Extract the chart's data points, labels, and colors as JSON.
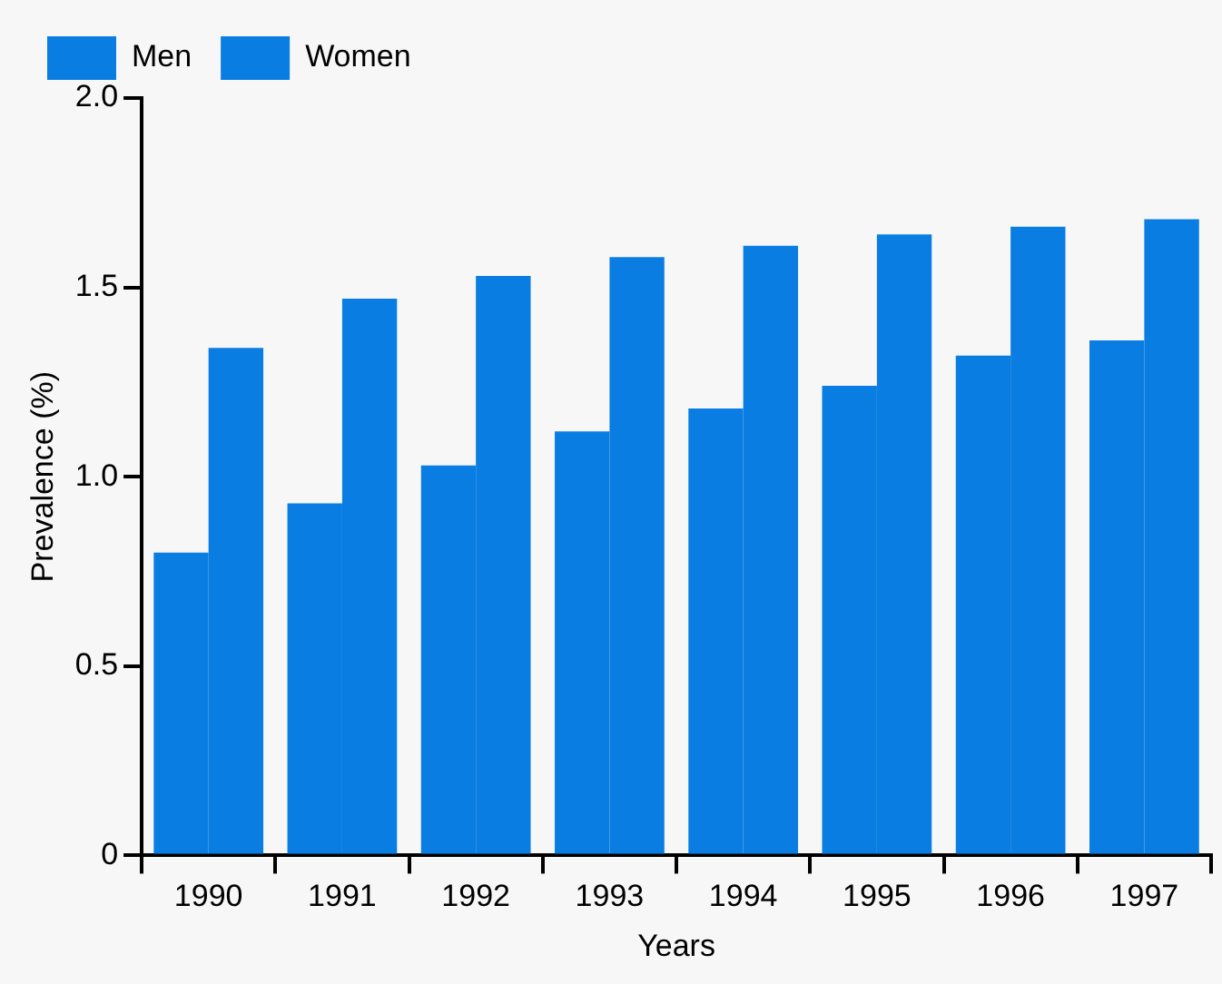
{
  "chart_data": {
    "type": "bar",
    "xlabel": "Years",
    "ylabel": "Prevalence (%)",
    "categories": [
      "1990",
      "1991",
      "1992",
      "1993",
      "1994",
      "1995",
      "1996",
      "1997"
    ],
    "series": [
      {
        "name": "Men",
        "color": "#0a7de3",
        "values": [
          0.8,
          0.93,
          1.03,
          1.12,
          1.18,
          1.24,
          1.32,
          1.36
        ]
      },
      {
        "name": "Women",
        "color": "#0a7de3",
        "values": [
          1.34,
          1.47,
          1.53,
          1.58,
          1.61,
          1.64,
          1.66,
          1.68
        ]
      }
    ],
    "ylim": [
      0,
      2.0
    ],
    "yticks": [
      0,
      {
        "value": 0.5,
        "label": "0.5"
      },
      {
        "value": 1.0,
        "label": "1.0"
      },
      {
        "value": 1.5,
        "label": "1.5"
      },
      {
        "value": 2.0,
        "label": "2.0"
      }
    ],
    "grid": false,
    "legend": "top left"
  }
}
